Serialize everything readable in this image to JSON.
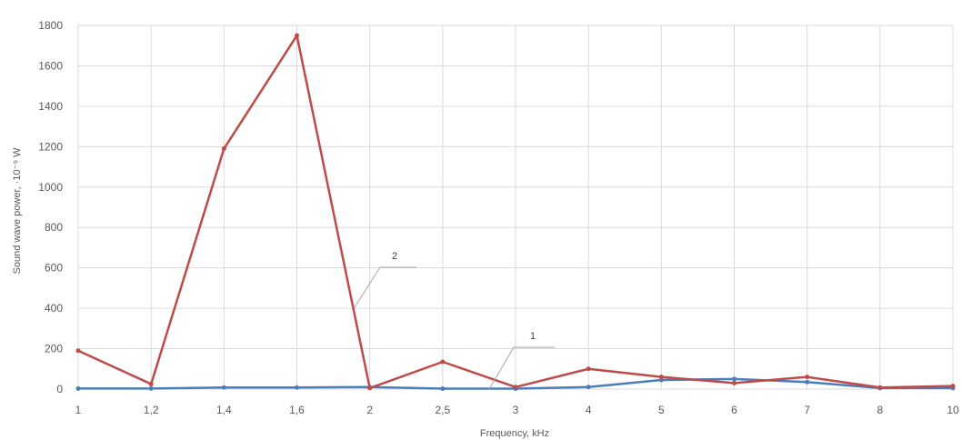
{
  "chart_data": {
    "type": "line",
    "categories": [
      "1",
      "1,2",
      "1,4",
      "1,6",
      "2",
      "2,5",
      "3",
      "4",
      "5",
      "6",
      "7",
      "8",
      "10"
    ],
    "series": [
      {
        "name": "1",
        "color": "#4a7ebb",
        "values": [
          3,
          3,
          8,
          8,
          10,
          2,
          2,
          10,
          45,
          50,
          35,
          5,
          5
        ]
      },
      {
        "name": "2",
        "color": "#be4b48",
        "values": [
          190,
          25,
          1190,
          1750,
          5,
          135,
          10,
          100,
          60,
          30,
          60,
          8,
          15
        ]
      }
    ],
    "ylim": [
      0,
      1800
    ],
    "yticks": [
      0,
      200,
      400,
      600,
      800,
      1000,
      1200,
      1400,
      1600,
      1800
    ],
    "xlabel": "Frequency, kHz",
    "ylabel": "Sound wave power, ·10⁻⁹ W",
    "grid": "vertical and horizontal",
    "gridColor": "#d9d9d9",
    "legend": "none"
  }
}
